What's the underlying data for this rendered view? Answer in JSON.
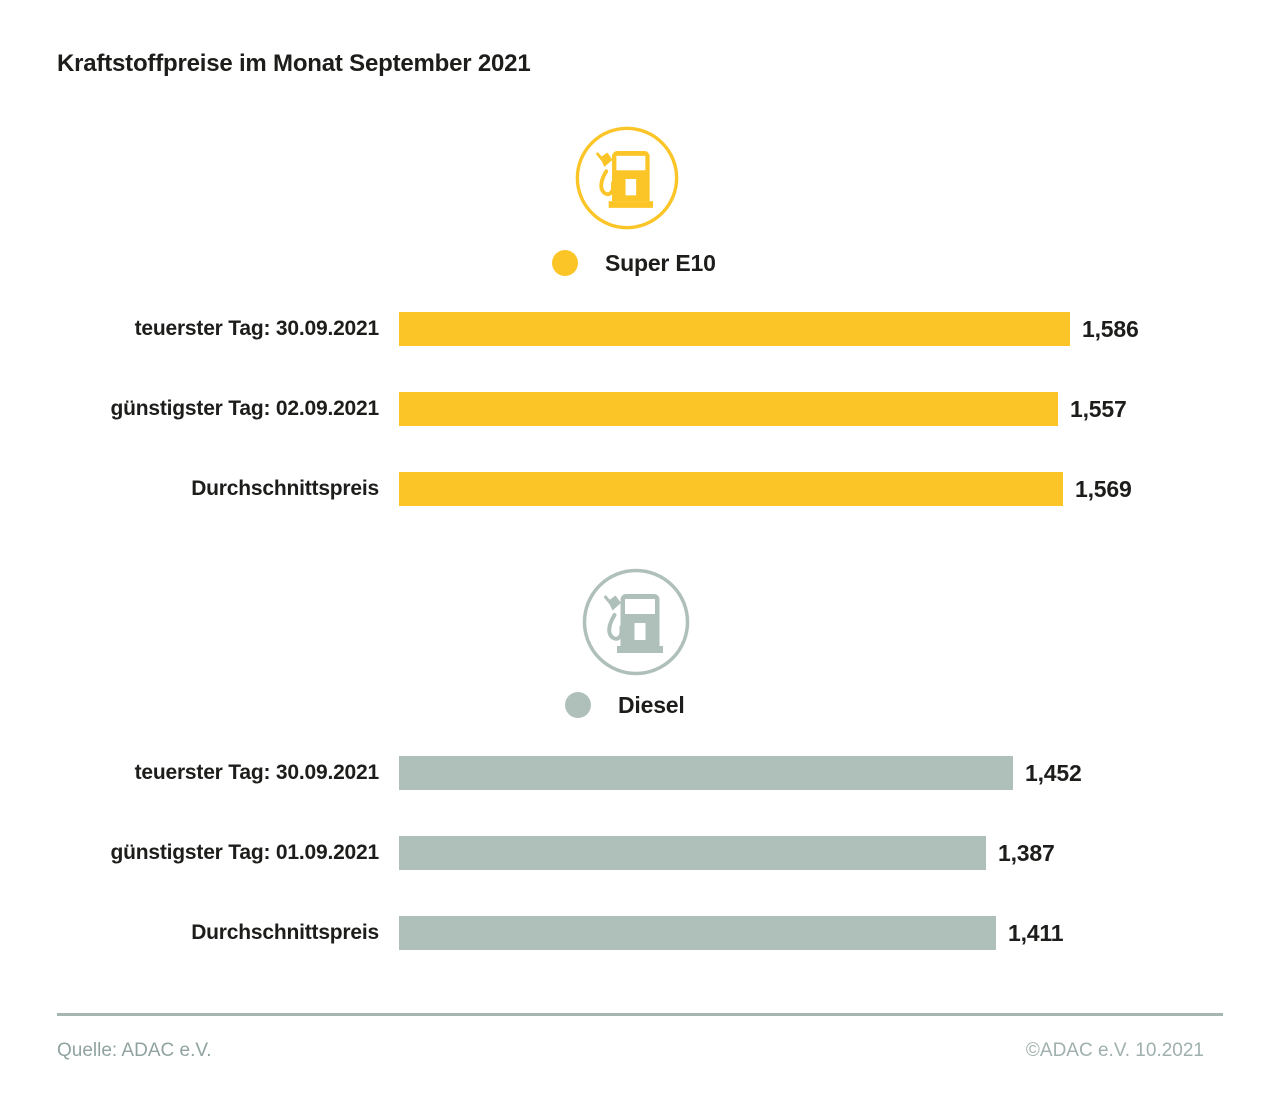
{
  "title": "Kraftstoffpreise im Monat September 2021",
  "footer": {
    "source": "Quelle: ADAC e.V.",
    "copyright": "©ADAC e.V. 10.2021"
  },
  "colors": {
    "super_e10": "#FBC527",
    "diesel": "#AFC0BA",
    "text": "#1d1d1b",
    "divider": "#a6b5b2",
    "source_text": "#90a3a1",
    "copyright_text": "#a0b0ae"
  },
  "chart_data": {
    "type": "bar",
    "orientation": "horizontal",
    "title": "Kraftstoffpreise im Monat September 2021",
    "xlabel": "",
    "ylabel": "",
    "xlim": [
      0,
      1.586
    ],
    "grid": false,
    "sections": [
      {
        "fuel": "Super E10",
        "icon": "fuel-pump-icon",
        "color": "#FBC527",
        "rows": [
          {
            "label": "teuerster Tag: 30.09.2021",
            "value": 1.586,
            "value_label": "1,586"
          },
          {
            "label": "günstigster Tag: 02.09.2021",
            "value": 1.557,
            "value_label": "1,557"
          },
          {
            "label": "Durchschnittspreis",
            "value": 1.569,
            "value_label": "1,569"
          }
        ]
      },
      {
        "fuel": "Diesel",
        "icon": "fuel-pump-icon",
        "color": "#AFC0BA",
        "rows": [
          {
            "label": "teuerster Tag: 30.09.2021",
            "value": 1.452,
            "value_label": "1,452"
          },
          {
            "label": "günstigster Tag: 01.09.2021",
            "value": 1.387,
            "value_label": "1,387"
          },
          {
            "label": "Durchschnittspreis",
            "value": 1.411,
            "value_label": "1,411"
          }
        ]
      }
    ]
  }
}
